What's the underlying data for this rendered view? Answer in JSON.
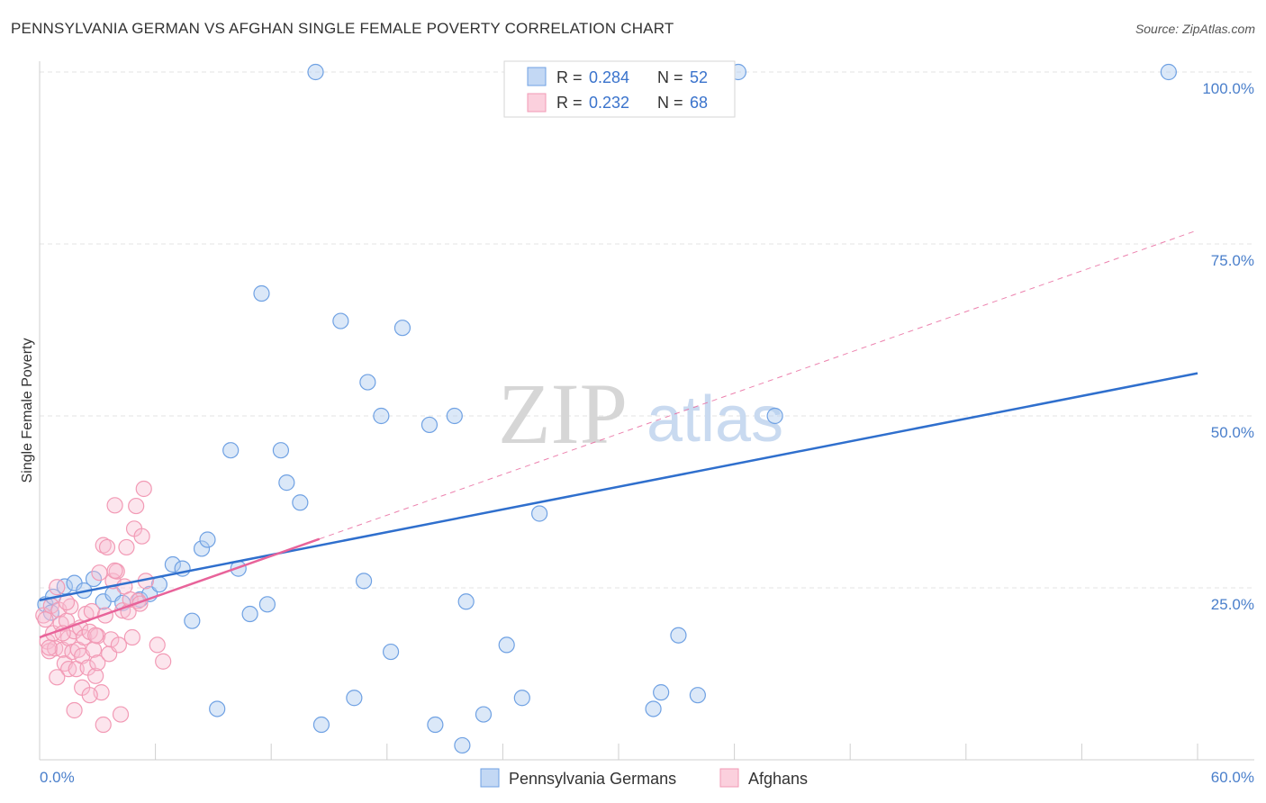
{
  "chart_data": {
    "type": "scatter",
    "title": "PENNSYLVANIA GERMAN VS AFGHAN SINGLE FEMALE POVERTY CORRELATION CHART",
    "source": "Source: ZipAtlas.com",
    "ylabel": "Single Female Poverty",
    "xlabel": "",
    "xlim": [
      0,
      60
    ],
    "ylim": [
      0,
      100
    ],
    "x_tick_labels": [
      "0.0%",
      "60.0%"
    ],
    "y_ticks": [
      25,
      50,
      75,
      100
    ],
    "y_tick_labels": [
      "25.0%",
      "50.0%",
      "75.0%",
      "100.0%"
    ],
    "grid": true,
    "watermark": "ZIPatlas",
    "legend": [
      {
        "name": "Pennsylvania Germans",
        "r_label": "R =",
        "r_value": "0.284",
        "n_label": "N =",
        "n_value": "52"
      },
      {
        "name": "Afghans",
        "r_label": "R =",
        "r_value": "0.232",
        "n_label": "N =",
        "n_value": "68"
      }
    ],
    "colors": {
      "blue": "#6fa1e3",
      "blue_line": "#2f6fcd",
      "pink": "#f29ab5",
      "pink_line": "#e8639a",
      "axis_text": "#4a7fcb",
      "grid": "#e3e3e3"
    },
    "series": [
      {
        "name": "Pennsylvania Germans",
        "trend": {
          "x0": 0,
          "y0": 23.2,
          "x1": 60,
          "y1": 56.2
        },
        "points": [
          [
            0.3,
            22.6
          ],
          [
            0.7,
            23.7
          ],
          [
            1.3,
            25.2
          ],
          [
            1.8,
            25.7
          ],
          [
            2.3,
            24.6
          ],
          [
            2.8,
            26.3
          ],
          [
            3.3,
            23.0
          ],
          [
            3.8,
            24.1
          ],
          [
            4.3,
            22.8
          ],
          [
            5.2,
            23.3
          ],
          [
            5.7,
            24.1
          ],
          [
            6.2,
            25.5
          ],
          [
            6.9,
            28.4
          ],
          [
            7.4,
            27.8
          ],
          [
            7.9,
            20.2
          ],
          [
            8.4,
            30.7
          ],
          [
            8.7,
            32.0
          ],
          [
            9.2,
            7.4
          ],
          [
            9.9,
            45.0
          ],
          [
            10.3,
            27.8
          ],
          [
            10.9,
            21.2
          ],
          [
            11.5,
            67.8
          ],
          [
            11.8,
            22.6
          ],
          [
            12.5,
            45.0
          ],
          [
            12.8,
            40.3
          ],
          [
            13.5,
            37.4
          ],
          [
            14.3,
            100
          ],
          [
            14.6,
            5.1
          ],
          [
            15.6,
            63.8
          ],
          [
            16.3,
            9.0
          ],
          [
            16.8,
            26.0
          ],
          [
            17.0,
            54.9
          ],
          [
            17.7,
            50.0
          ],
          [
            18.2,
            15.7
          ],
          [
            18.8,
            62.8
          ],
          [
            20.2,
            48.7
          ],
          [
            20.5,
            5.1
          ],
          [
            21.5,
            50.0
          ],
          [
            21.9,
            2.1
          ],
          [
            22.1,
            23.0
          ],
          [
            23.0,
            6.6
          ],
          [
            24.2,
            16.7
          ],
          [
            25.0,
            9.0
          ],
          [
            25.9,
            35.8
          ],
          [
            31.8,
            7.4
          ],
          [
            32.2,
            9.8
          ],
          [
            33.1,
            18.1
          ],
          [
            34.1,
            9.4
          ],
          [
            36.2,
            100
          ],
          [
            38.1,
            50.0
          ],
          [
            58.5,
            100
          ],
          [
            0.6,
            21.4
          ]
        ]
      },
      {
        "name": "Afghans",
        "trend": {
          "x0": 0,
          "y0": 17.8,
          "x1": 60,
          "y1": 77.0,
          "solid_until_x": 14.5
        },
        "points": [
          [
            0.2,
            21.0
          ],
          [
            0.3,
            20.4
          ],
          [
            0.4,
            17.2
          ],
          [
            0.5,
            15.8
          ],
          [
            0.6,
            22.4
          ],
          [
            0.7,
            18.4
          ],
          [
            0.8,
            16.2
          ],
          [
            0.9,
            25.1
          ],
          [
            1.0,
            21.8
          ],
          [
            1.1,
            19.8
          ],
          [
            1.2,
            16.0
          ],
          [
            1.3,
            14.0
          ],
          [
            1.4,
            20.2
          ],
          [
            1.5,
            17.7
          ],
          [
            1.5,
            13.2
          ],
          [
            1.6,
            22.3
          ],
          [
            1.7,
            15.7
          ],
          [
            1.8,
            18.7
          ],
          [
            1.8,
            7.2
          ],
          [
            1.9,
            13.2
          ],
          [
            2.0,
            16.0
          ],
          [
            2.1,
            19.2
          ],
          [
            2.2,
            15.1
          ],
          [
            2.3,
            17.8
          ],
          [
            2.4,
            21.2
          ],
          [
            2.5,
            13.4
          ],
          [
            2.6,
            18.6
          ],
          [
            2.7,
            21.6
          ],
          [
            2.8,
            16.0
          ],
          [
            2.9,
            12.2
          ],
          [
            3.0,
            18.0
          ],
          [
            3.0,
            14.1
          ],
          [
            3.1,
            27.2
          ],
          [
            3.2,
            9.8
          ],
          [
            3.3,
            31.2
          ],
          [
            3.4,
            21.0
          ],
          [
            3.5,
            30.9
          ],
          [
            3.6,
            15.4
          ],
          [
            3.7,
            17.5
          ],
          [
            3.8,
            26.0
          ],
          [
            3.9,
            37.0
          ],
          [
            4.0,
            27.4
          ],
          [
            4.1,
            16.7
          ],
          [
            4.2,
            6.6
          ],
          [
            4.3,
            21.7
          ],
          [
            4.4,
            25.2
          ],
          [
            4.5,
            30.9
          ],
          [
            4.6,
            21.5
          ],
          [
            4.7,
            23.3
          ],
          [
            4.8,
            17.8
          ],
          [
            4.9,
            33.6
          ],
          [
            5.0,
            36.9
          ],
          [
            5.1,
            23.1
          ],
          [
            5.2,
            22.7
          ],
          [
            5.3,
            32.5
          ],
          [
            5.4,
            39.4
          ],
          [
            5.5,
            26.0
          ],
          [
            6.1,
            16.7
          ],
          [
            6.4,
            14.3
          ],
          [
            2.2,
            10.5
          ],
          [
            2.6,
            9.4
          ],
          [
            3.3,
            5.1
          ],
          [
            3.9,
            27.5
          ],
          [
            2.9,
            18.1
          ],
          [
            1.4,
            22.9
          ],
          [
            0.9,
            12.0
          ],
          [
            0.5,
            16.3
          ],
          [
            1.2,
            18.4
          ]
        ]
      }
    ]
  }
}
